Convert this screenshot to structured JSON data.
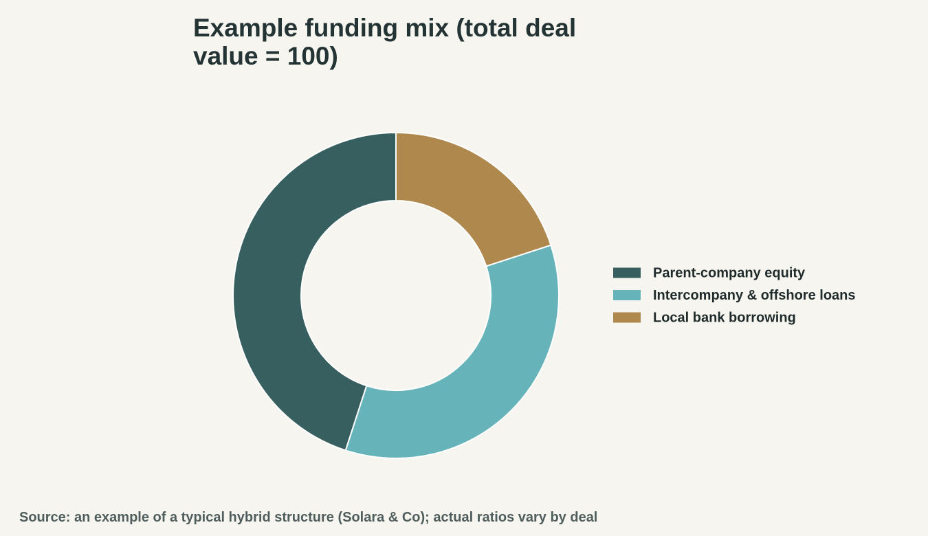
{
  "chart_data": {
    "type": "donut",
    "title": "Example funding mix (total deal value = 100)",
    "categories": [
      "Parent-company equity",
      "Intercompany & offshore loans",
      "Local bank borrowing"
    ],
    "values": [
      45,
      35,
      20
    ],
    "colors": [
      "#375f5f",
      "#66b4b9",
      "#af884e"
    ],
    "direction": "counterclockwise",
    "legend": "right",
    "source": "Source: an example of a typical hybrid structure (Solara & Co); actual ratios vary by deal"
  }
}
